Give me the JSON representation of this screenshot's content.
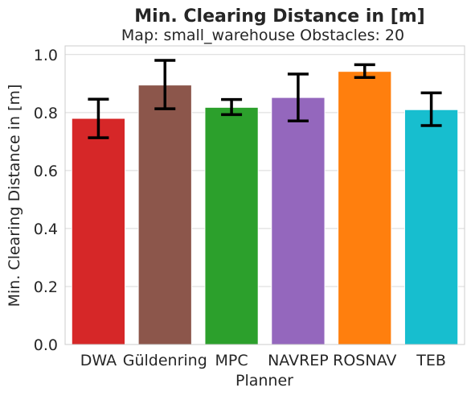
{
  "chart_data": {
    "type": "bar",
    "title": "Min. Clearing Distance in [m]",
    "subtitle": "Map: small_warehouse Obstacles: 20",
    "xlabel": "Planner",
    "ylabel": "Min. Clearing Distance in [m]",
    "ylim": [
      0,
      1.03
    ],
    "yticks": [
      "0.0",
      "0.2",
      "0.4",
      "0.6",
      "0.8",
      "1.0"
    ],
    "ytick_values": [
      0,
      0.2,
      0.4,
      0.6,
      0.8,
      1.0
    ],
    "grid": true,
    "categories": [
      "DWA",
      "Güldenring",
      "MPC",
      "NAVREP",
      "ROSNAV",
      "TEB"
    ],
    "values": [
      0.78,
      0.895,
      0.818,
      0.852,
      0.942,
      0.81
    ],
    "error_low": [
      0.713,
      0.813,
      0.793,
      0.771,
      0.921,
      0.755
    ],
    "error_high": [
      0.846,
      0.98,
      0.845,
      0.933,
      0.965,
      0.868
    ],
    "colors": [
      "#d62728",
      "#8c564b",
      "#2ca02c",
      "#9467bd",
      "#ff7f0e",
      "#17becf"
    ]
  }
}
